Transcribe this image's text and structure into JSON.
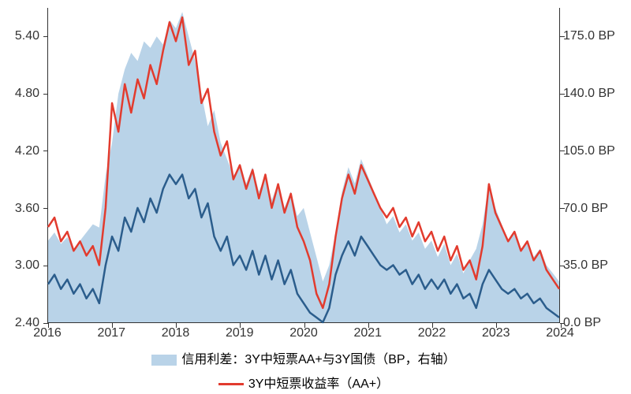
{
  "chart": {
    "type": "line+area",
    "background_color": "#ffffff",
    "axis_color": "#333333",
    "font_color": "#333333",
    "label_fontsize": 16,
    "left_axis": {
      "min": 2.4,
      "max": 5.7,
      "ticks": [
        2.4,
        3.0,
        3.6,
        4.2,
        4.8,
        5.4
      ]
    },
    "right_axis": {
      "min": 0.0,
      "max": 192.5,
      "ticks": [
        0.0,
        35.0,
        70.0,
        105.0,
        140.0,
        175.0
      ],
      "suffix": " BP"
    },
    "x_axis": {
      "min": 2016,
      "max": 2024,
      "ticks": [
        2016,
        2017,
        2018,
        2019,
        2020,
        2021,
        2022,
        2023,
        2024
      ]
    },
    "area_series": {
      "label": "信用利差：3Y中短票AA+与3Y国债（BP，右轴）",
      "color": "#b9d3e8",
      "axis": "right",
      "data": [
        [
          2016.0,
          50
        ],
        [
          2016.1,
          55
        ],
        [
          2016.2,
          48
        ],
        [
          2016.3,
          52
        ],
        [
          2016.4,
          45
        ],
        [
          2016.5,
          50
        ],
        [
          2016.6,
          55
        ],
        [
          2016.7,
          60
        ],
        [
          2016.8,
          58
        ],
        [
          2016.9,
          90
        ],
        [
          2017.0,
          110
        ],
        [
          2017.1,
          140
        ],
        [
          2017.2,
          155
        ],
        [
          2017.3,
          165
        ],
        [
          2017.4,
          160
        ],
        [
          2017.5,
          172
        ],
        [
          2017.6,
          168
        ],
        [
          2017.7,
          175
        ],
        [
          2017.8,
          170
        ],
        [
          2017.9,
          185
        ],
        [
          2018.0,
          180
        ],
        [
          2018.1,
          190
        ],
        [
          2018.2,
          175
        ],
        [
          2018.3,
          160
        ],
        [
          2018.4,
          140
        ],
        [
          2018.5,
          120
        ],
        [
          2018.6,
          130
        ],
        [
          2018.7,
          110
        ],
        [
          2018.8,
          100
        ],
        [
          2018.9,
          90
        ],
        [
          2019.0,
          95
        ],
        [
          2019.1,
          85
        ],
        [
          2019.2,
          95
        ],
        [
          2019.3,
          80
        ],
        [
          2019.4,
          90
        ],
        [
          2019.5,
          75
        ],
        [
          2019.6,
          85
        ],
        [
          2019.7,
          70
        ],
        [
          2019.8,
          80
        ],
        [
          2019.9,
          65
        ],
        [
          2020.0,
          70
        ],
        [
          2020.1,
          55
        ],
        [
          2020.2,
          40
        ],
        [
          2020.3,
          25
        ],
        [
          2020.4,
          35
        ],
        [
          2020.5,
          55
        ],
        [
          2020.6,
          80
        ],
        [
          2020.7,
          95
        ],
        [
          2020.8,
          85
        ],
        [
          2020.9,
          100
        ],
        [
          2021.0,
          90
        ],
        [
          2021.1,
          80
        ],
        [
          2021.2,
          70
        ],
        [
          2021.3,
          60
        ],
        [
          2021.4,
          65
        ],
        [
          2021.5,
          55
        ],
        [
          2021.6,
          60
        ],
        [
          2021.7,
          50
        ],
        [
          2021.8,
          55
        ],
        [
          2021.9,
          45
        ],
        [
          2022.0,
          50
        ],
        [
          2022.1,
          40
        ],
        [
          2022.2,
          48
        ],
        [
          2022.3,
          35
        ],
        [
          2022.4,
          42
        ],
        [
          2022.5,
          30
        ],
        [
          2022.6,
          38
        ],
        [
          2022.7,
          45
        ],
        [
          2022.8,
          60
        ],
        [
          2022.9,
          85
        ],
        [
          2023.0,
          70
        ],
        [
          2023.1,
          60
        ],
        [
          2023.2,
          50
        ],
        [
          2023.3,
          55
        ],
        [
          2023.4,
          45
        ],
        [
          2023.5,
          50
        ],
        [
          2023.6,
          40
        ],
        [
          2023.7,
          45
        ],
        [
          2023.8,
          35
        ],
        [
          2023.9,
          30
        ],
        [
          2024.0,
          25
        ]
      ]
    },
    "line_red": {
      "label": "3Y中短票收益率（AA+）",
      "color": "#e23b2e",
      "width": 2.5,
      "axis": "left",
      "data": [
        [
          2016.0,
          3.4
        ],
        [
          2016.1,
          3.5
        ],
        [
          2016.2,
          3.25
        ],
        [
          2016.3,
          3.35
        ],
        [
          2016.4,
          3.15
        ],
        [
          2016.5,
          3.25
        ],
        [
          2016.6,
          3.1
        ],
        [
          2016.7,
          3.2
        ],
        [
          2016.8,
          3.0
        ],
        [
          2016.9,
          3.6
        ],
        [
          2017.0,
          4.7
        ],
        [
          2017.1,
          4.4
        ],
        [
          2017.2,
          4.9
        ],
        [
          2017.3,
          4.6
        ],
        [
          2017.4,
          4.95
        ],
        [
          2017.5,
          4.75
        ],
        [
          2017.6,
          5.1
        ],
        [
          2017.7,
          4.9
        ],
        [
          2017.8,
          5.25
        ],
        [
          2017.9,
          5.55
        ],
        [
          2018.0,
          5.35
        ],
        [
          2018.1,
          5.6
        ],
        [
          2018.2,
          5.1
        ],
        [
          2018.3,
          5.25
        ],
        [
          2018.4,
          4.7
        ],
        [
          2018.5,
          4.85
        ],
        [
          2018.6,
          4.4
        ],
        [
          2018.7,
          4.15
        ],
        [
          2018.8,
          4.3
        ],
        [
          2018.9,
          3.9
        ],
        [
          2019.0,
          4.05
        ],
        [
          2019.1,
          3.8
        ],
        [
          2019.2,
          4.0
        ],
        [
          2019.3,
          3.7
        ],
        [
          2019.4,
          3.95
        ],
        [
          2019.5,
          3.6
        ],
        [
          2019.6,
          3.85
        ],
        [
          2019.7,
          3.55
        ],
        [
          2019.8,
          3.75
        ],
        [
          2019.9,
          3.4
        ],
        [
          2020.0,
          3.25
        ],
        [
          2020.1,
          3.05
        ],
        [
          2020.2,
          2.7
        ],
        [
          2020.3,
          2.55
        ],
        [
          2020.4,
          2.8
        ],
        [
          2020.5,
          3.3
        ],
        [
          2020.6,
          3.7
        ],
        [
          2020.7,
          3.95
        ],
        [
          2020.8,
          3.75
        ],
        [
          2020.9,
          4.05
        ],
        [
          2021.0,
          3.9
        ],
        [
          2021.1,
          3.75
        ],
        [
          2021.2,
          3.6
        ],
        [
          2021.3,
          3.5
        ],
        [
          2021.4,
          3.6
        ],
        [
          2021.5,
          3.4
        ],
        [
          2021.6,
          3.5
        ],
        [
          2021.7,
          3.3
        ],
        [
          2021.8,
          3.45
        ],
        [
          2021.9,
          3.25
        ],
        [
          2022.0,
          3.35
        ],
        [
          2022.1,
          3.15
        ],
        [
          2022.2,
          3.3
        ],
        [
          2022.3,
          3.05
        ],
        [
          2022.4,
          3.2
        ],
        [
          2022.5,
          2.95
        ],
        [
          2022.6,
          3.05
        ],
        [
          2022.7,
          2.85
        ],
        [
          2022.8,
          3.2
        ],
        [
          2022.9,
          3.85
        ],
        [
          2023.0,
          3.55
        ],
        [
          2023.1,
          3.4
        ],
        [
          2023.2,
          3.25
        ],
        [
          2023.3,
          3.35
        ],
        [
          2023.4,
          3.15
        ],
        [
          2023.5,
          3.25
        ],
        [
          2023.6,
          3.05
        ],
        [
          2023.7,
          3.15
        ],
        [
          2023.8,
          2.95
        ],
        [
          2023.9,
          2.85
        ],
        [
          2024.0,
          2.75
        ]
      ]
    },
    "line_blue": {
      "label": "",
      "color": "#2b5d8c",
      "width": 2.5,
      "axis": "left",
      "data": [
        [
          2016.0,
          2.8
        ],
        [
          2016.1,
          2.9
        ],
        [
          2016.2,
          2.75
        ],
        [
          2016.3,
          2.85
        ],
        [
          2016.4,
          2.7
        ],
        [
          2016.5,
          2.8
        ],
        [
          2016.6,
          2.65
        ],
        [
          2016.7,
          2.75
        ],
        [
          2016.8,
          2.6
        ],
        [
          2016.9,
          3.0
        ],
        [
          2017.0,
          3.3
        ],
        [
          2017.1,
          3.15
        ],
        [
          2017.2,
          3.5
        ],
        [
          2017.3,
          3.35
        ],
        [
          2017.4,
          3.6
        ],
        [
          2017.5,
          3.45
        ],
        [
          2017.6,
          3.7
        ],
        [
          2017.7,
          3.55
        ],
        [
          2017.8,
          3.8
        ],
        [
          2017.9,
          3.95
        ],
        [
          2018.0,
          3.85
        ],
        [
          2018.1,
          3.95
        ],
        [
          2018.2,
          3.7
        ],
        [
          2018.3,
          3.8
        ],
        [
          2018.4,
          3.5
        ],
        [
          2018.5,
          3.65
        ],
        [
          2018.6,
          3.3
        ],
        [
          2018.7,
          3.15
        ],
        [
          2018.8,
          3.3
        ],
        [
          2018.9,
          3.0
        ],
        [
          2019.0,
          3.1
        ],
        [
          2019.1,
          2.95
        ],
        [
          2019.2,
          3.15
        ],
        [
          2019.3,
          2.9
        ],
        [
          2019.4,
          3.1
        ],
        [
          2019.5,
          2.85
        ],
        [
          2019.6,
          3.05
        ],
        [
          2019.7,
          2.8
        ],
        [
          2019.8,
          2.95
        ],
        [
          2019.9,
          2.7
        ],
        [
          2020.0,
          2.6
        ],
        [
          2020.1,
          2.5
        ],
        [
          2020.2,
          2.45
        ],
        [
          2020.3,
          2.4
        ],
        [
          2020.4,
          2.55
        ],
        [
          2020.5,
          2.9
        ],
        [
          2020.6,
          3.1
        ],
        [
          2020.7,
          3.25
        ],
        [
          2020.8,
          3.1
        ],
        [
          2020.9,
          3.3
        ],
        [
          2021.0,
          3.2
        ],
        [
          2021.1,
          3.1
        ],
        [
          2021.2,
          3.0
        ],
        [
          2021.3,
          2.95
        ],
        [
          2021.4,
          3.0
        ],
        [
          2021.5,
          2.9
        ],
        [
          2021.6,
          2.95
        ],
        [
          2021.7,
          2.8
        ],
        [
          2021.8,
          2.9
        ],
        [
          2021.9,
          2.75
        ],
        [
          2022.0,
          2.85
        ],
        [
          2022.1,
          2.75
        ],
        [
          2022.2,
          2.85
        ],
        [
          2022.3,
          2.7
        ],
        [
          2022.4,
          2.8
        ],
        [
          2022.5,
          2.65
        ],
        [
          2022.6,
          2.7
        ],
        [
          2022.7,
          2.55
        ],
        [
          2022.8,
          2.8
        ],
        [
          2022.9,
          2.95
        ],
        [
          2023.0,
          2.85
        ],
        [
          2023.1,
          2.75
        ],
        [
          2023.2,
          2.7
        ],
        [
          2023.3,
          2.75
        ],
        [
          2023.4,
          2.65
        ],
        [
          2023.5,
          2.7
        ],
        [
          2023.6,
          2.6
        ],
        [
          2023.7,
          2.65
        ],
        [
          2023.8,
          2.55
        ],
        [
          2023.9,
          2.5
        ],
        [
          2024.0,
          2.45
        ]
      ]
    }
  }
}
